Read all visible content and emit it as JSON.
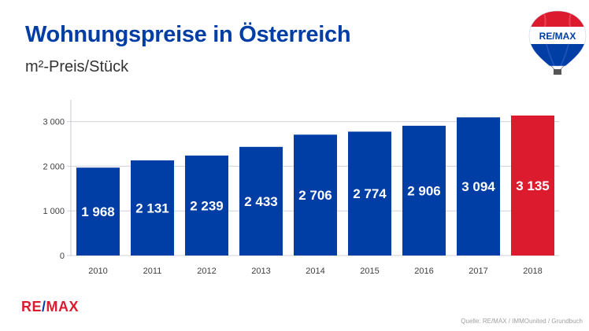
{
  "header": {
    "title": "Wohnungspreise in Österreich",
    "subtitle": "m²-Preis/Stück"
  },
  "logo": {
    "balloon_text": "RE/MAX",
    "footer_text_left": "RE",
    "footer_text_slash": "/",
    "footer_text_right": "MAX"
  },
  "footer": {
    "source": "Quelle: RE/MAX / IMMOunited / Grundbuch"
  },
  "colors": {
    "brand_blue": "#003da5",
    "brand_red": "#dc1c2e",
    "grid": "#d0d0da"
  },
  "chart_data": {
    "type": "bar",
    "title": "Wohnungspreise in Österreich",
    "subtitle": "m²-Preis/Stück",
    "xlabel": "",
    "ylabel": "",
    "categories": [
      "2010",
      "2011",
      "2012",
      "2013",
      "2014",
      "2015",
      "2016",
      "2017",
      "2018"
    ],
    "values": [
      1968,
      2131,
      2239,
      2433,
      2706,
      2774,
      2906,
      3094,
      3135
    ],
    "data_labels": [
      "1 968",
      "2 131",
      "2 239",
      "2 433",
      "2 706",
      "2 774",
      "2 906",
      "3 094",
      "3 135"
    ],
    "highlight_index": 8,
    "bar_colors": [
      "#003da5",
      "#003da5",
      "#003da5",
      "#003da5",
      "#003da5",
      "#003da5",
      "#003da5",
      "#003da5",
      "#dc1c2e"
    ],
    "ylim": [
      0,
      3500
    ],
    "yticks": [
      0,
      1000,
      2000,
      3000
    ],
    "ytick_labels": [
      "0",
      "1 000",
      "2 000",
      "3 000"
    ],
    "grid": true,
    "legend": "none"
  }
}
